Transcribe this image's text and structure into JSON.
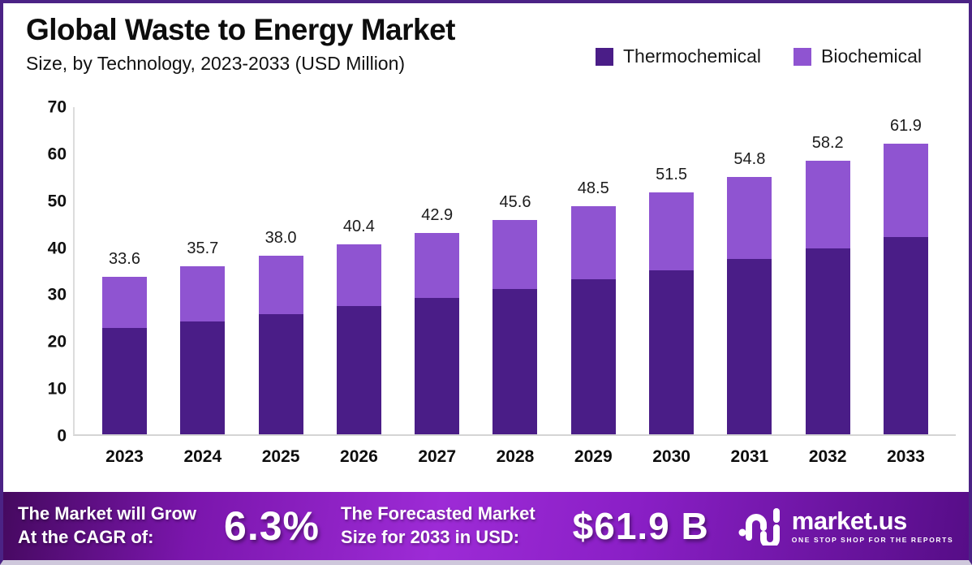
{
  "header": {
    "title": "Global Waste to Energy Market",
    "subtitle": "Size, by Technology, 2023-2033 (USD Million)"
  },
  "colors": {
    "thermochemical": "#4A1D87",
    "biochemical": "#8F54D1",
    "frame_border": "#4B2385",
    "banner_gradient_mid": "#9D2BD6"
  },
  "chart_data": {
    "type": "bar",
    "stacked": true,
    "title": "Global Waste to Energy Market Size, by Technology, 2023-2033 (USD Million)",
    "categories": [
      "2023",
      "2024",
      "2025",
      "2026",
      "2027",
      "2028",
      "2029",
      "2030",
      "2031",
      "2032",
      "2033"
    ],
    "series": [
      {
        "name": "Thermochemical",
        "color": "#4A1D87",
        "values": [
          22.6,
          24.1,
          25.6,
          27.3,
          29.0,
          31.0,
          33.0,
          35.0,
          37.3,
          39.6,
          42.0
        ]
      },
      {
        "name": "Biochemical",
        "color": "#8F54D1",
        "values": [
          11.0,
          11.6,
          12.4,
          13.1,
          13.9,
          14.6,
          15.5,
          16.5,
          17.5,
          18.6,
          19.9
        ]
      }
    ],
    "total_labels": [
      "33.6",
      "35.7",
      "38.0",
      "40.4",
      "42.9",
      "45.6",
      "48.5",
      "51.5",
      "54.8",
      "58.2",
      "61.9"
    ],
    "yticks": [
      0,
      10,
      20,
      30,
      40,
      50,
      60,
      70
    ],
    "ylim": [
      0,
      70
    ],
    "xlabel": "",
    "ylabel": "",
    "grid": false,
    "legend_position": "top-right"
  },
  "banner": {
    "cagr_label_line1": "The Market will Grow",
    "cagr_label_line2": "At the CAGR of:",
    "cagr_value": "6.3%",
    "forecast_label_line1": "The Forecasted Market",
    "forecast_label_line2": "Size for 2033 in USD:",
    "forecast_value": "$61.9 B",
    "logo_text": "market.us",
    "logo_tagline": "ONE STOP SHOP FOR THE REPORTS"
  }
}
